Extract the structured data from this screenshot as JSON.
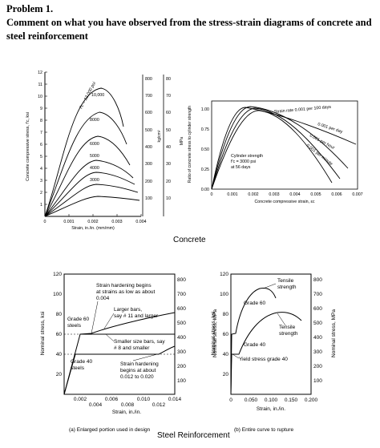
{
  "problem": {
    "heading": "Problem 1.",
    "question": "Comment on what you have observed from the stress-strain diagrams of concrete and steel reinforcement"
  },
  "concrete": {
    "caption": "Concrete",
    "chart_a": {
      "ylabel": "Concrete compressive stress, f'c, ksi",
      "xlabel": "Strain, in./in. (mm/mm)",
      "y_ticks": [
        "1",
        "2",
        "3",
        "4",
        "5",
        "6",
        "7",
        "8",
        "9",
        "10",
        "11",
        "12"
      ],
      "x_ticks": [
        "0",
        "0.001",
        "0.002",
        "0.003",
        "0.004"
      ],
      "kg_ticks": [
        "100",
        "200",
        "300",
        "400",
        "500",
        "600",
        "700",
        "800"
      ],
      "kg_label": "kg/cm²",
      "mpa_ticks": [
        "10",
        "20",
        "30",
        "40",
        "50",
        "60",
        "70",
        "80"
      ],
      "mpa_label": "MPa",
      "curve_labels": [
        "f'c = 12,000 psi",
        "10,000",
        "8000",
        "6000",
        "5000",
        "4000",
        "3000"
      ]
    },
    "chart_b": {
      "ylabel": "Ratio of concrete stress to cylinder strength",
      "xlabel": "Concrete compressive strain, εc",
      "y_ticks": [
        "0.00",
        "0.25",
        "0.50",
        "0.75",
        "1.00"
      ],
      "x_ticks": [
        "0",
        "0.001",
        "0.002",
        "0.003",
        "0.004",
        "0.005",
        "0.006",
        "0.007"
      ],
      "rate_labels": [
        "Strain rate 0.001 per 100 days",
        "0.001 per day",
        "0.001 per hour",
        "0.001 per minute"
      ],
      "note_lines": [
        "Cylinder strength",
        "f'c = 3000 psi",
        "at 56 days"
      ]
    }
  },
  "steel": {
    "caption": "Steel Reinforcement",
    "chart_a": {
      "caption": "(a)  Enlarged portion used in design",
      "ylabel": "Nominal stress, ksi",
      "y2label": "Nominal stress, MPa",
      "xlabel": "Strain, in./in.",
      "y_ticks": [
        "20",
        "40",
        "60",
        "80",
        "100",
        "120"
      ],
      "mpa_ticks": [
        "100",
        "200",
        "300",
        "400",
        "500",
        "600",
        "700",
        "800"
      ],
      "x_ticks_top": [
        "0.002",
        "0.006",
        "0.010",
        "0.014"
      ],
      "x_ticks_bottom": [
        "0.004",
        "0.008",
        "0.012"
      ],
      "annotations": {
        "hardening_top": [
          "Strain hardening begins",
          "at strains as low as about",
          "0.004"
        ],
        "larger_bars": [
          "Larger bars,",
          "say # 11 and larger"
        ],
        "grade60": [
          "Grade 60",
          "steels"
        ],
        "smaller_bars": [
          "Smaller size bars, say",
          "# 8 and smaller"
        ],
        "grade40": [
          "Grade 40",
          "steels"
        ],
        "hardening_bottom": [
          "Strain hardening",
          "begins at about",
          "0.012 to 0.020"
        ]
      }
    },
    "chart_b": {
      "caption": "(b)  Entire curve to rupture",
      "ylabel": "Nominal stress, ksi",
      "y2label": "Nominal stress, MPa",
      "xlabel": "Strain, in./in.",
      "y_ticks": [
        "20",
        "40",
        "60",
        "80",
        "100",
        "120"
      ],
      "mpa_ticks": [
        "100",
        "200",
        "300",
        "400",
        "500",
        "600",
        "700",
        "800"
      ],
      "x_ticks": [
        "0",
        "0.050",
        "0.100",
        "0.150",
        "0.200"
      ],
      "annotations": {
        "tensile_top": [
          "Tensile",
          "strength"
        ],
        "grade60": "Grade 60",
        "tensile_bottom": [
          "Tensile",
          "strength"
        ],
        "grade40": "Grade 40",
        "yield": "Yield stress grade 40"
      }
    }
  }
}
